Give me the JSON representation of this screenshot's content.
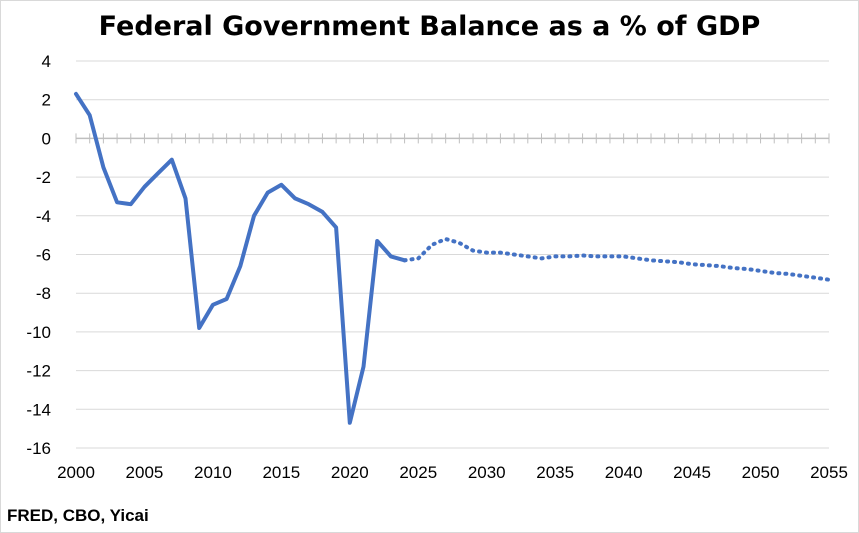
{
  "source_note": "FRED, CBO, Yicai",
  "chart_data": {
    "type": "line",
    "title": "Federal Government Balance as a % of GDP",
    "xlabel": "",
    "ylabel": "",
    "xlim": [
      2000,
      2055
    ],
    "ylim": [
      -16,
      4
    ],
    "x_ticks": [
      "2000",
      "2005",
      "2010",
      "2015",
      "2020",
      "2025",
      "2030",
      "2035",
      "2040",
      "2045",
      "2050",
      "2055"
    ],
    "y_ticks": [
      "4",
      "2",
      "0",
      "-2",
      "-4",
      "-6",
      "-8",
      "-10",
      "-12",
      "-14",
      "-16"
    ],
    "grid": true,
    "line_color": "#4472C4",
    "series": [
      {
        "style": "solid",
        "x": [
          2000,
          2001,
          2002,
          2003,
          2004,
          2005,
          2006,
          2007,
          2008,
          2009,
          2010,
          2011,
          2012,
          2013,
          2014,
          2015,
          2016,
          2017,
          2018,
          2019,
          2020,
          2021,
          2022,
          2023,
          2024
        ],
        "y": [
          2.3,
          1.2,
          -1.5,
          -3.3,
          -3.4,
          -2.5,
          -1.8,
          -1.1,
          -3.1,
          -9.8,
          -8.6,
          -8.3,
          -6.6,
          -4.0,
          -2.8,
          -2.4,
          -3.1,
          -3.4,
          -3.8,
          -4.6,
          -14.7,
          -11.8,
          -5.3,
          -6.1,
          -6.3
        ]
      },
      {
        "style": "dotted",
        "x": [
          2024,
          2025,
          2026,
          2027,
          2028,
          2029,
          2030,
          2031,
          2032,
          2033,
          2034,
          2035,
          2036,
          2037,
          2038,
          2039,
          2040,
          2041,
          2042,
          2043,
          2044,
          2045,
          2046,
          2047,
          2048,
          2049,
          2050,
          2051,
          2052,
          2053,
          2054,
          2055
        ],
        "y": [
          -6.3,
          -6.2,
          -5.5,
          -5.2,
          -5.4,
          -5.8,
          -5.9,
          -5.9,
          -6.0,
          -6.1,
          -6.2,
          -6.1,
          -6.1,
          -6.05,
          -6.1,
          -6.1,
          -6.1,
          -6.2,
          -6.3,
          -6.35,
          -6.4,
          -6.5,
          -6.55,
          -6.6,
          -6.7,
          -6.75,
          -6.85,
          -6.95,
          -7.0,
          -7.1,
          -7.2,
          -7.3
        ]
      }
    ]
  }
}
